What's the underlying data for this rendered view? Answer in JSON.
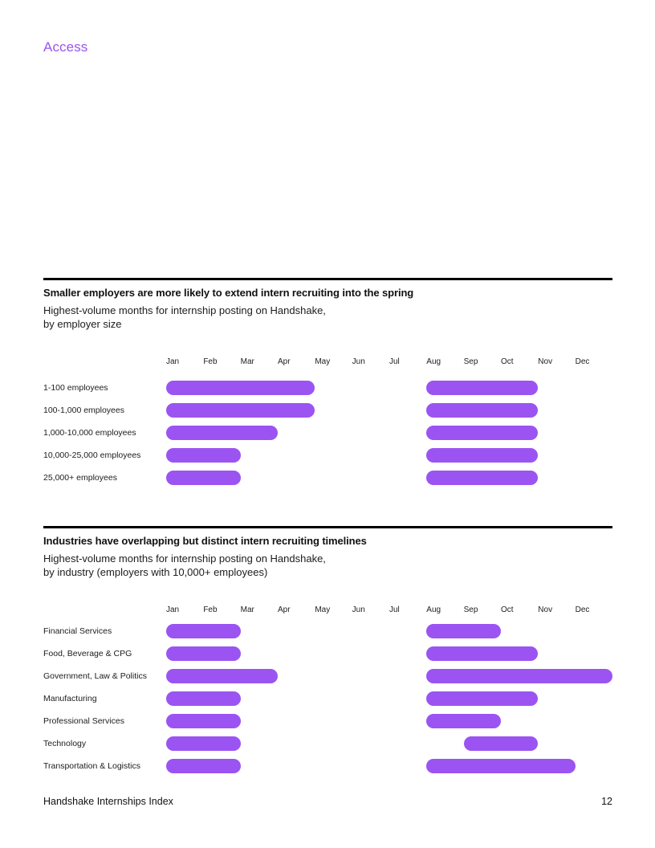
{
  "page": {
    "section_label": "Access",
    "footer": {
      "left": "Handshake Internships Index",
      "page_number": "12"
    }
  },
  "colors": {
    "accent": "#9b54f1",
    "heading": "#111111",
    "body_text": "#1c1c1e",
    "rule": "#000000"
  },
  "chart_data": [
    {
      "type": "timeline-bar",
      "title": "Smaller employers are more likely to extend intern recruiting into the spring",
      "subtitle_lines": [
        "Highest-volume months for internship posting on Handshake,",
        "by employer size"
      ],
      "categories": [
        "Jan",
        "Feb",
        "Mar",
        "Apr",
        "May",
        "Jun",
        "Jul",
        "Aug",
        "Sep",
        "Oct",
        "Nov",
        "Dec"
      ],
      "rows": [
        {
          "label": "1-100 employees",
          "bars": [
            {
              "start": "Jan",
              "end": "Apr"
            },
            {
              "start": "Aug",
              "end": "Oct"
            }
          ]
        },
        {
          "label": "100-1,000 employees",
          "bars": [
            {
              "start": "Jan",
              "end": "Apr"
            },
            {
              "start": "Aug",
              "end": "Oct"
            }
          ]
        },
        {
          "label": "1,000-10,000 employees",
          "bars": [
            {
              "start": "Jan",
              "end": "Mar"
            },
            {
              "start": "Aug",
              "end": "Oct"
            }
          ]
        },
        {
          "label": "10,000-25,000 employees",
          "bars": [
            {
              "start": "Jan",
              "end": "Feb"
            },
            {
              "start": "Aug",
              "end": "Oct"
            }
          ]
        },
        {
          "label": "25,000+ employees",
          "bars": [
            {
              "start": "Jan",
              "end": "Feb"
            },
            {
              "start": "Aug",
              "end": "Oct"
            }
          ]
        }
      ]
    },
    {
      "type": "timeline-bar",
      "title": "Industries have overlapping but distinct intern recruiting timelines",
      "subtitle_lines": [
        "Highest-volume months for internship posting on Handshake,",
        "by industry (employers with 10,000+ employees)"
      ],
      "categories": [
        "Jan",
        "Feb",
        "Mar",
        "Apr",
        "May",
        "Jun",
        "Jul",
        "Aug",
        "Sep",
        "Oct",
        "Nov",
        "Dec"
      ],
      "rows": [
        {
          "label": "Financial Services",
          "bars": [
            {
              "start": "Jan",
              "end": "Feb"
            },
            {
              "start": "Aug",
              "end": "Sep"
            }
          ]
        },
        {
          "label": "Food, Beverage & CPG",
          "bars": [
            {
              "start": "Jan",
              "end": "Feb"
            },
            {
              "start": "Aug",
              "end": "Oct"
            }
          ]
        },
        {
          "label": "Government, Law & Politics",
          "bars": [
            {
              "start": "Jan",
              "end": "Mar"
            },
            {
              "start": "Aug",
              "end": "Dec"
            }
          ]
        },
        {
          "label": "Manufacturing",
          "bars": [
            {
              "start": "Jan",
              "end": "Feb"
            },
            {
              "start": "Aug",
              "end": "Oct"
            }
          ]
        },
        {
          "label": "Professional Services",
          "bars": [
            {
              "start": "Jan",
              "end": "Feb"
            },
            {
              "start": "Aug",
              "end": "Sep"
            }
          ]
        },
        {
          "label": "Technology",
          "bars": [
            {
              "start": "Jan",
              "end": "Feb"
            },
            {
              "start": "Sep",
              "end": "Oct"
            }
          ]
        },
        {
          "label": "Transportation & Logistics",
          "bars": [
            {
              "start": "Jan",
              "end": "Feb"
            },
            {
              "start": "Aug",
              "end": "Nov"
            }
          ]
        }
      ]
    }
  ]
}
